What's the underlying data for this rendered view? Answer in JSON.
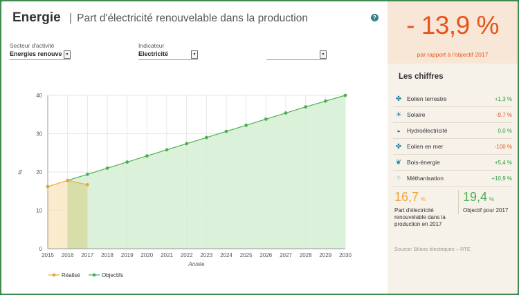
{
  "header": {
    "title": "Energie",
    "separator": "|",
    "subtitle": "Part d'électricité renouvelable dans la production",
    "help": "?"
  },
  "filters": {
    "sector_label": "Secteur d'activité",
    "sector_value": "Energies renouve",
    "indicator_label": "Indicateur",
    "indicator_value": "Electricité",
    "third_value": ""
  },
  "kpi": {
    "value": "- 13,9 %",
    "caption": "par rapport à l'objectif 2017"
  },
  "chiffres": {
    "title": "Les chiffres",
    "rows": [
      {
        "icon": "wind-turbine-icon",
        "label": "Eolien terrestre",
        "value": "+1,3 %",
        "tone": "pos"
      },
      {
        "icon": "sun-icon",
        "label": "Solaire",
        "value": "-9,7 %",
        "tone": "neg"
      },
      {
        "icon": "water-drop-icon",
        "label": "Hydroélectricité",
        "value": "0,0 %",
        "tone": "neu"
      },
      {
        "icon": "wind-turbine-icon",
        "label": "Eolien en mer",
        "value": "-100 %",
        "tone": "neg"
      },
      {
        "icon": "leaf-icon",
        "label": "Bois-énergie",
        "value": "+5,4 %",
        "tone": "pos"
      },
      {
        "icon": "methane-icon",
        "label": "Méthanisation",
        "value": "+10,9 %",
        "tone": "pos"
      }
    ]
  },
  "stats": {
    "realise_value": "16,7",
    "realise_unit": "%",
    "realise_desc": "Part d'électricité renouvelable dans la production en 2017",
    "objectif_value": "19,4",
    "objectif_unit": "%",
    "objectif_desc": "Objectif pour 2017"
  },
  "source": "Source: Bilans électriques – RTE",
  "colors": {
    "accent": "#e8521a",
    "realise": "#f0a534",
    "objectif": "#4caf50"
  },
  "chart_data": {
    "type": "area",
    "xlabel": "Année",
    "ylabel": "%",
    "x": [
      2015,
      2016,
      2017,
      2018,
      2019,
      2020,
      2021,
      2022,
      2023,
      2024,
      2025,
      2026,
      2027,
      2028,
      2029,
      2030
    ],
    "ylim": [
      0,
      40
    ],
    "yticks": [
      0,
      10,
      20,
      30,
      40
    ],
    "legend_position": "bottom-left",
    "grid": true,
    "series": [
      {
        "name": "Réalisé",
        "x": [
          2015,
          2016,
          2017
        ],
        "values": [
          16.2,
          17.8,
          16.7
        ],
        "color": "#f0a534"
      },
      {
        "name": "Objectifs",
        "x": [
          2016,
          2017,
          2018,
          2019,
          2020,
          2021,
          2022,
          2023,
          2024,
          2025,
          2026,
          2027,
          2028,
          2029,
          2030
        ],
        "values": [
          17.8,
          19.4,
          21.0,
          22.6,
          24.2,
          25.8,
          27.4,
          29.0,
          30.6,
          32.2,
          33.8,
          35.4,
          37.0,
          38.5,
          40.0
        ],
        "color": "#4caf50"
      }
    ]
  }
}
